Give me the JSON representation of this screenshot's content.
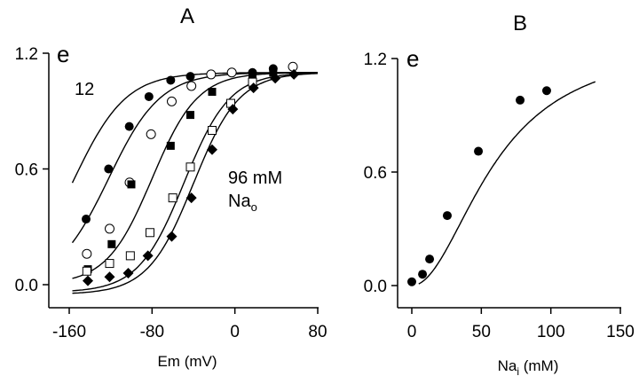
{
  "chart_data": [
    {
      "panel": "A",
      "type": "scatter",
      "title": "A",
      "xlabel": "Em (mV)",
      "ylabel": "",
      "corner_label": "e",
      "xlim": [
        -160,
        80
      ],
      "ylim": [
        0.0,
        1.2
      ],
      "xticks": [
        -160,
        -80,
        0,
        80
      ],
      "xtick_labels": [
        "-160",
        "-80",
        "0",
        "80"
      ],
      "yticks": [
        0.0,
        0.6,
        1.2
      ],
      "ytick_labels": [
        "0.0",
        "0.6",
        "1.2"
      ],
      "grid": false,
      "annotations": [
        {
          "text": "12",
          "role": "low-Nao-label"
        },
        {
          "text": "96 mM",
          "role": "high-Nao-label-line1"
        },
        {
          "text": "Na",
          "sub": "o",
          "role": "high-Nao-label-line2"
        }
      ],
      "series": [
        {
          "name": "filled-circle",
          "marker": "filled-circle",
          "points": [
            [
              -143.7,
              0.34
            ],
            [
              -122,
              0.6
            ],
            [
              -102,
              0.82
            ],
            [
              -83,
              0.975
            ],
            [
              -62,
              1.06
            ],
            [
              -43,
              1.08
            ],
            [
              -3,
              1.1
            ],
            [
              17,
              1.1
            ],
            [
              37,
              1.12
            ]
          ]
        },
        {
          "name": "open-circle",
          "marker": "open-circle",
          "points": [
            [
              -143,
              0.16
            ],
            [
              -121,
              0.29
            ],
            [
              -101.7,
              0.53
            ],
            [
              -81,
              0.78
            ],
            [
              -61,
              0.95
            ],
            [
              -42,
              1.03
            ],
            [
              -23,
              1.09
            ],
            [
              -3,
              1.1
            ],
            [
              56,
              1.13
            ]
          ]
        },
        {
          "name": "filled-square",
          "marker": "filled-square",
          "points": [
            [
              -142,
              0.08
            ],
            [
              -119,
              0.21
            ],
            [
              -100,
              0.52
            ],
            [
              -62,
              0.72
            ],
            [
              -43,
              0.88
            ],
            [
              -22,
              1.0
            ],
            [
              17,
              1.09
            ],
            [
              37,
              1.1
            ]
          ]
        },
        {
          "name": "open-square",
          "marker": "open-square",
          "points": [
            [
              -143,
              0.07
            ],
            [
              -121,
              0.11
            ],
            [
              -101,
              0.15
            ],
            [
              -82,
              0.27
            ],
            [
              -60,
              0.45
            ],
            [
              -43,
              0.61
            ],
            [
              -22,
              0.8
            ],
            [
              -4,
              0.94
            ],
            [
              17,
              1.05
            ]
          ]
        },
        {
          "name": "filled-diamond",
          "marker": "filled-diamond",
          "points": [
            [
              -142,
              0.02
            ],
            [
              -121,
              0.04
            ],
            [
              -103,
              0.06
            ],
            [
              -84,
              0.15
            ],
            [
              -61,
              0.25
            ],
            [
              -42,
              0.45
            ],
            [
              -22,
              0.7
            ],
            [
              -2,
              0.91
            ],
            [
              18,
              1.02
            ],
            [
              39,
              1.07
            ],
            [
              57,
              1.09
            ]
          ]
        }
      ],
      "fit_curves": [
        {
          "name": "fit-1",
          "model": "boltzmann",
          "vhalf": -155,
          "slope": 25,
          "max": 1.1,
          "min": 0.0,
          "x_range": [
            -157,
            80
          ]
        },
        {
          "name": "fit-2",
          "model": "boltzmann",
          "vhalf": -122,
          "slope": 25,
          "max": 1.1,
          "min": 0.0,
          "x_range": [
            -157,
            80
          ]
        },
        {
          "name": "fit-3",
          "model": "boltzmann",
          "vhalf": -80,
          "slope": 22,
          "max": 1.1,
          "min": 0.0,
          "x_range": [
            -157,
            80
          ]
        },
        {
          "name": "fit-4",
          "model": "boltzmann",
          "vhalf": -49,
          "slope": 22,
          "max": 1.1,
          "min": -0.04,
          "x_range": [
            -157,
            80
          ]
        },
        {
          "name": "fit-5",
          "model": "boltzmann",
          "vhalf": -40,
          "slope": 22,
          "max": 1.1,
          "min": -0.05,
          "x_range": [
            -157,
            80
          ]
        }
      ]
    },
    {
      "panel": "B",
      "type": "scatter",
      "title": "B",
      "xlabel": "Na",
      "xlabel_sub": "i",
      "xlabel_unit": " (mM)",
      "ylabel": "",
      "corner_label": "e",
      "xlim": [
        0,
        150
      ],
      "ylim": [
        0.0,
        1.2
      ],
      "xticks": [
        0,
        50,
        100,
        150
      ],
      "xtick_labels": [
        "0",
        "50",
        "100",
        "150"
      ],
      "yticks": [
        0.0,
        0.6,
        1.2
      ],
      "ytick_labels": [
        "0.0",
        "0.6",
        "1.2"
      ],
      "grid": false,
      "series": [
        {
          "name": "filled-circle",
          "marker": "filled-circle",
          "points": [
            [
              0,
              0.02
            ],
            [
              7.7,
              0.06
            ],
            [
              12.8,
              0.14
            ],
            [
              25.5,
              0.37
            ],
            [
              47.9,
              0.71
            ],
            [
              77.9,
              0.98
            ],
            [
              97,
              1.03
            ]
          ]
        }
      ],
      "fit_curves": [
        {
          "name": "fit-hill",
          "model": "hill",
          "max": 1.3,
          "k": 60,
          "n": 2,
          "x_range": [
            5,
            132
          ]
        }
      ]
    }
  ]
}
